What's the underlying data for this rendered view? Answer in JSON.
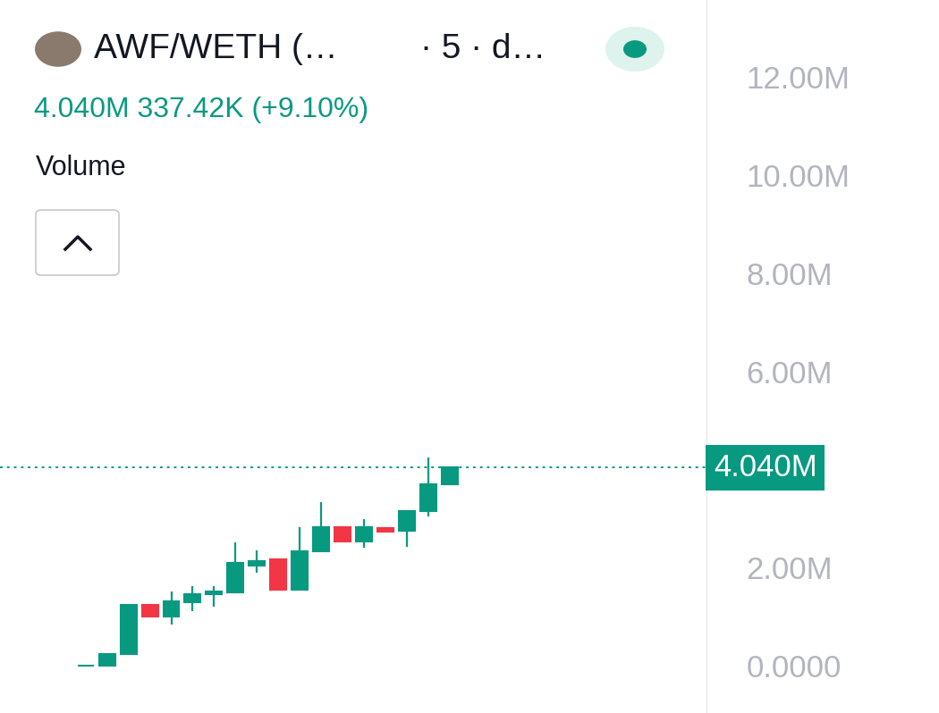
{
  "chart_data": {
    "type": "candlestick",
    "title": "AWF/WETH (…",
    "subtitle": "4.040M 337.42K (+9.10%)",
    "annotations": [
      "· 5 · d…",
      "Volume"
    ],
    "categories": [
      null,
      null,
      null,
      null,
      null,
      null,
      null,
      null,
      null,
      null,
      null,
      null,
      null,
      null,
      null,
      null,
      null,
      null
    ],
    "open": [
      0,
      0,
      250000,
      1250000,
      1000000,
      1290000,
      1470000,
      1490000,
      2040000,
      2180000,
      1550000,
      2330000,
      2820000,
      2530000,
      2800000,
      2750000,
      3150000,
      3700000
    ],
    "high": [
      0,
      250000,
      1250000,
      1250000,
      1510000,
      1620000,
      1620000,
      2510000,
      2360000,
      2180000,
      2820000,
      3330000,
      2820000,
      3000000,
      2800000,
      3150000,
      4240000,
      4040000
    ],
    "low": [
      0,
      0,
      250000,
      1000000,
      850000,
      1110000,
      1200000,
      1490000,
      1890000,
      1550000,
      1550000,
      2330000,
      2530000,
      2400000,
      2730000,
      2420000,
      3040000,
      3700000
    ],
    "close": [
      0,
      250000,
      1250000,
      1000000,
      1310000,
      1470000,
      1510000,
      2090000,
      2130000,
      1550000,
      2330000,
      2820000,
      2530000,
      2820000,
      2730000,
      3150000,
      3700000,
      4040000
    ],
    "colors": [
      "#089981",
      "#089981",
      "#089981",
      "#f23645",
      "#089981",
      "#089981",
      "#089981",
      "#089981",
      "#089981",
      "#f23645",
      "#089981",
      "#089981",
      "#f23645",
      "#089981",
      "#f23645",
      "#089981",
      "#089981",
      "#089981"
    ],
    "color": "#089981",
    "current_price": {
      "value": 4040000,
      "label": "4.040M"
    },
    "xlim": [
      -4,
      29
    ],
    "ylim": [
      -960000,
      13570000
    ],
    "yticks": [
      {
        "value": 0,
        "label": "0.0000"
      },
      {
        "value": 2000000,
        "label": "2.00M"
      },
      {
        "value": 6000000,
        "label": "6.00M"
      },
      {
        "value": 8000000,
        "label": "8.00M"
      },
      {
        "value": 10000000,
        "label": "10.00M"
      },
      {
        "value": 12000000,
        "label": "12.00M"
      }
    ],
    "tick_labels": "y",
    "grid": false
  }
}
